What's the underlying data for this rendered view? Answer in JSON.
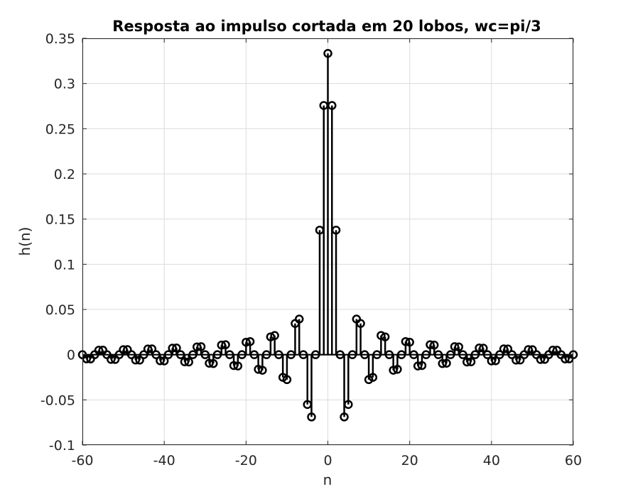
{
  "chart_data": {
    "type": "stem",
    "title": "Resposta ao impulso cortada em 20 lobos, wc=pi/3",
    "xlabel": "n",
    "ylabel": "h(n)",
    "xlim": [
      -60,
      60
    ],
    "ylim": [
      -0.1,
      0.35
    ],
    "grid": true,
    "marker": "circle",
    "color": "#000000",
    "x_ticks": [
      -60,
      -40,
      -20,
      0,
      20,
      40,
      60
    ],
    "x_tick_labels": [
      "-60",
      "-40",
      "-20",
      "0",
      "20",
      "40",
      "60"
    ],
    "y_ticks": [
      -0.1,
      -0.05,
      0,
      0.05,
      0.1,
      0.15,
      0.2,
      0.25,
      0.3,
      0.35
    ],
    "y_tick_labels": [
      "-0.1",
      "-0.05",
      "0",
      "0.05",
      "0.1",
      "0.15",
      "0.2",
      "0.25",
      "0.3",
      "0.35"
    ],
    "x": [
      -60,
      -59,
      -58,
      -57,
      -56,
      -55,
      -54,
      -53,
      -52,
      -51,
      -50,
      -49,
      -48,
      -47,
      -46,
      -45,
      -44,
      -43,
      -42,
      -41,
      -40,
      -39,
      -38,
      -37,
      -36,
      -35,
      -34,
      -33,
      -32,
      -31,
      -30,
      -29,
      -28,
      -27,
      -26,
      -25,
      -24,
      -23,
      -22,
      -21,
      -20,
      -19,
      -18,
      -17,
      -16,
      -15,
      -14,
      -13,
      -12,
      -11,
      -10,
      -9,
      -8,
      -7,
      -6,
      -5,
      -4,
      -3,
      -2,
      -1,
      0,
      1,
      2,
      3,
      4,
      5,
      6,
      7,
      8,
      9,
      10,
      11,
      12,
      13,
      14,
      15,
      16,
      17,
      18,
      19,
      20,
      21,
      22,
      23,
      24,
      25,
      26,
      27,
      28,
      29,
      30,
      31,
      32,
      33,
      34,
      35,
      36,
      37,
      38,
      39,
      40,
      41,
      42,
      43,
      44,
      45,
      46,
      47,
      48,
      49,
      50,
      51,
      52,
      53,
      54,
      55,
      56,
      57,
      58,
      59,
      60
    ],
    "values": [
      0,
      -0.0046,
      -0.0047,
      0,
      0.0049,
      0.005,
      0,
      -0.0052,
      -0.0053,
      0,
      0.0055,
      0.0056,
      0,
      -0.0059,
      -0.006,
      0,
      0.0063,
      0.0064,
      0,
      -0.0067,
      -0.0069,
      0,
      0.0072,
      0.0074,
      0,
      -0.0079,
      -0.0081,
      0,
      0.0086,
      0.0089,
      0,
      -0.0095,
      -0.0098,
      0,
      0.0106,
      0.011,
      0,
      -0.012,
      -0.0125,
      0,
      0.0138,
      0.0145,
      0,
      -0.0162,
      -0.0172,
      0,
      0.0197,
      0.0212,
      0,
      -0.0251,
      -0.0276,
      0,
      0.0345,
      0.0394,
      0,
      -0.0551,
      -0.0689,
      0,
      0.1378,
      0.2757,
      0.3333,
      0.2757,
      0.1378,
      0,
      -0.0689,
      -0.0551,
      0,
      0.0394,
      0.0345,
      0,
      -0.0276,
      -0.0251,
      0,
      0.0212,
      0.0197,
      0,
      -0.0172,
      -0.0162,
      0,
      0.0145,
      0.0138,
      0,
      -0.0125,
      -0.012,
      0,
      0.011,
      0.0106,
      0,
      -0.0098,
      -0.0095,
      0,
      0.0089,
      0.0086,
      0,
      -0.0081,
      -0.0079,
      0,
      0.0074,
      0.0072,
      0,
      -0.0069,
      -0.0067,
      0,
      0.0064,
      0.0063,
      0,
      -0.006,
      -0.0059,
      0,
      0.0056,
      0.0055,
      0,
      -0.0053,
      -0.0052,
      0,
      0.005,
      0.0049,
      0,
      -0.0047,
      -0.0046,
      0
    ]
  }
}
